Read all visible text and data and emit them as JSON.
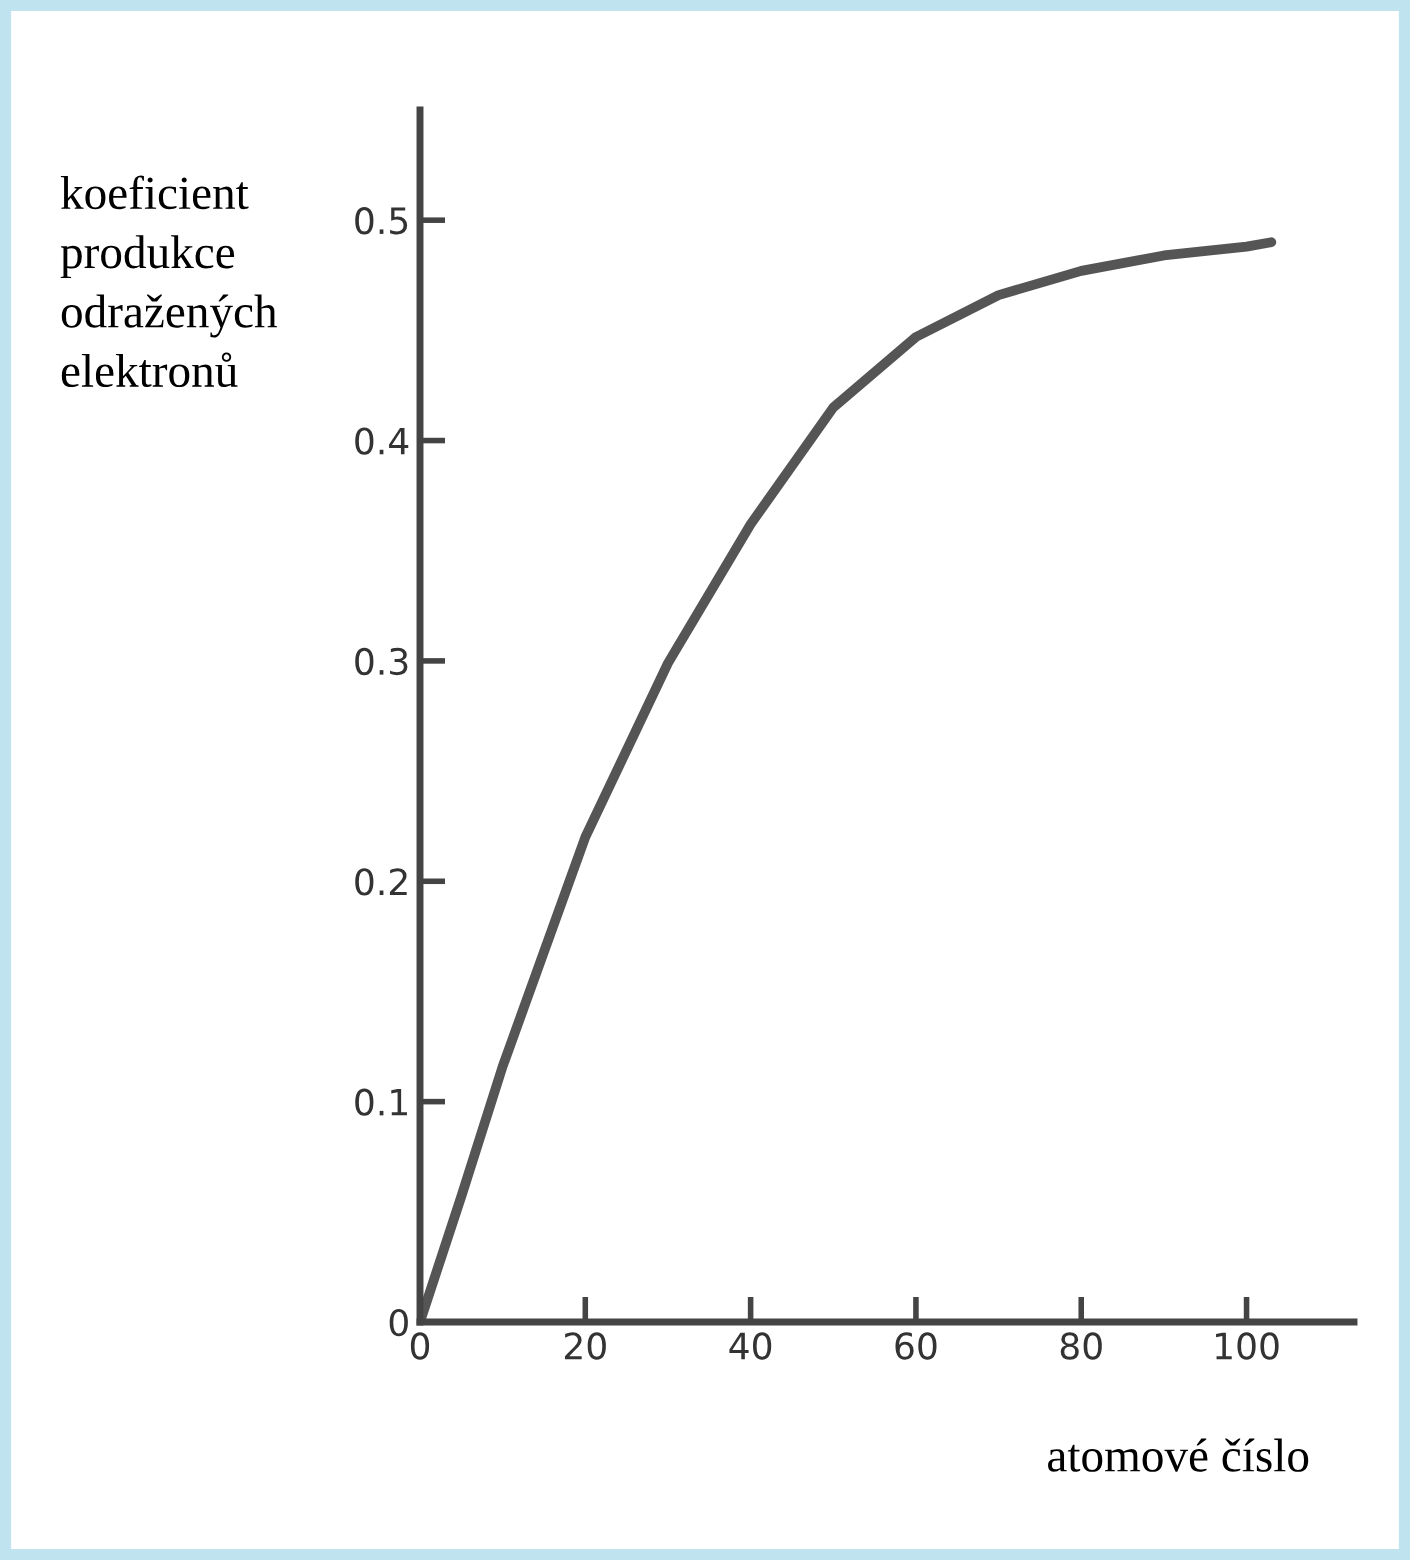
{
  "chart_data": {
    "type": "line",
    "xlabel": "atomové číslo",
    "ylabel": "koeficient\nprodukce\nodražených\nelektronů",
    "x": [
      0,
      5,
      10,
      20,
      30,
      40,
      50,
      60,
      70,
      80,
      90,
      100,
      103
    ],
    "series": [
      {
        "color": "#555555",
        "values": [
          0,
          0.057,
          0.116,
          0.22,
          0.299,
          0.362,
          0.415,
          0.447,
          0.466,
          0.477,
          0.484,
          0.488,
          0.49
        ]
      }
    ],
    "xlim": [
      0,
      113
    ],
    "ylim": [
      0,
      0.55
    ],
    "xticks": [
      0,
      20,
      40,
      60,
      80,
      100
    ],
    "yticks": [
      0,
      0.1,
      0.2,
      0.3,
      0.4,
      0.5
    ],
    "grid": false,
    "legend": false,
    "marker": "none",
    "line_style": "solid"
  }
}
